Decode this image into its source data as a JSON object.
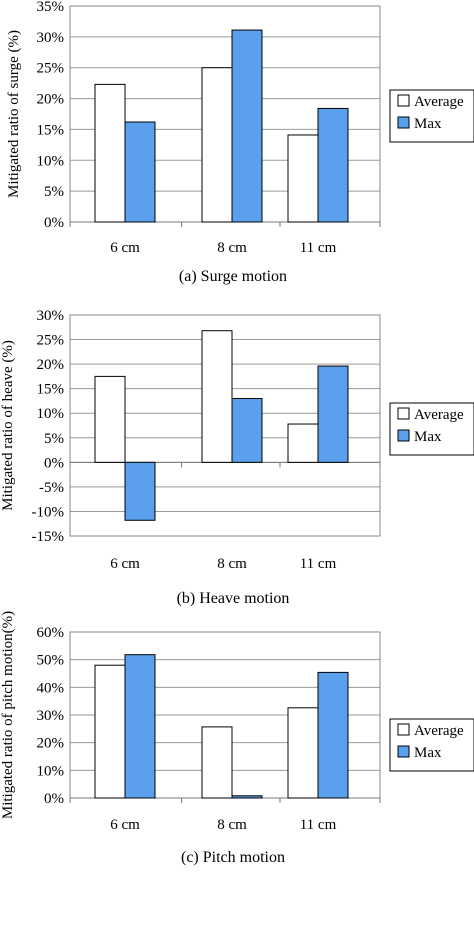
{
  "chart_data": [
    {
      "type": "bar",
      "caption": "(a) Surge motion",
      "ylabel": "Mitigated ratio of surge (%)",
      "categories": [
        "6 cm",
        "8 cm",
        "11 cm"
      ],
      "ylim": [
        0,
        35
      ],
      "yticks": [
        0,
        5,
        10,
        15,
        20,
        25,
        30,
        35
      ],
      "ytick_labels": [
        "0%",
        "5%",
        "10%",
        "15%",
        "20%",
        "25%",
        "30%",
        "35%"
      ],
      "grid": true,
      "legend_position": "right",
      "series": [
        {
          "name": "Average",
          "color": "#ffffff",
          "values": [
            22.3,
            25.0,
            14.1
          ]
        },
        {
          "name": "Max",
          "color": "#5aa0ec",
          "values": [
            16.2,
            31.1,
            18.4
          ]
        }
      ]
    },
    {
      "type": "bar",
      "caption": "(b) Heave motion",
      "ylabel": "Mitigated ratio of heave (%)",
      "categories": [
        "6 cm",
        "8 cm",
        "11 cm"
      ],
      "ylim": [
        -15,
        30
      ],
      "yticks": [
        -15,
        -10,
        -5,
        0,
        5,
        10,
        15,
        20,
        25,
        30
      ],
      "ytick_labels": [
        "-15%",
        "-10%",
        "-5%",
        "0%",
        "5%",
        "10%",
        "15%",
        "20%",
        "25%",
        "30%"
      ],
      "grid": true,
      "legend_position": "right",
      "series": [
        {
          "name": "Average",
          "color": "#ffffff",
          "values": [
            17.5,
            26.8,
            7.8
          ]
        },
        {
          "name": "Max",
          "color": "#5aa0ec",
          "values": [
            -11.8,
            13.0,
            19.6
          ]
        }
      ]
    },
    {
      "type": "bar",
      "caption": "(c) Pitch motion",
      "ylabel": "Mitigated ratio of pitch motion(%)",
      "categories": [
        "6 cm",
        "8 cm",
        "11 cm"
      ],
      "ylim": [
        0,
        60
      ],
      "yticks": [
        0,
        10,
        20,
        30,
        40,
        50,
        60
      ],
      "ytick_labels": [
        "0%",
        "10%",
        "20%",
        "30%",
        "40%",
        "50%",
        "60%"
      ],
      "grid": true,
      "legend_position": "right",
      "series": [
        {
          "name": "Average",
          "color": "#ffffff",
          "values": [
            48.0,
            25.7,
            32.6
          ]
        },
        {
          "name": "Max",
          "color": "#5aa0ec",
          "values": [
            51.8,
            0.8,
            45.4
          ]
        }
      ]
    }
  ]
}
